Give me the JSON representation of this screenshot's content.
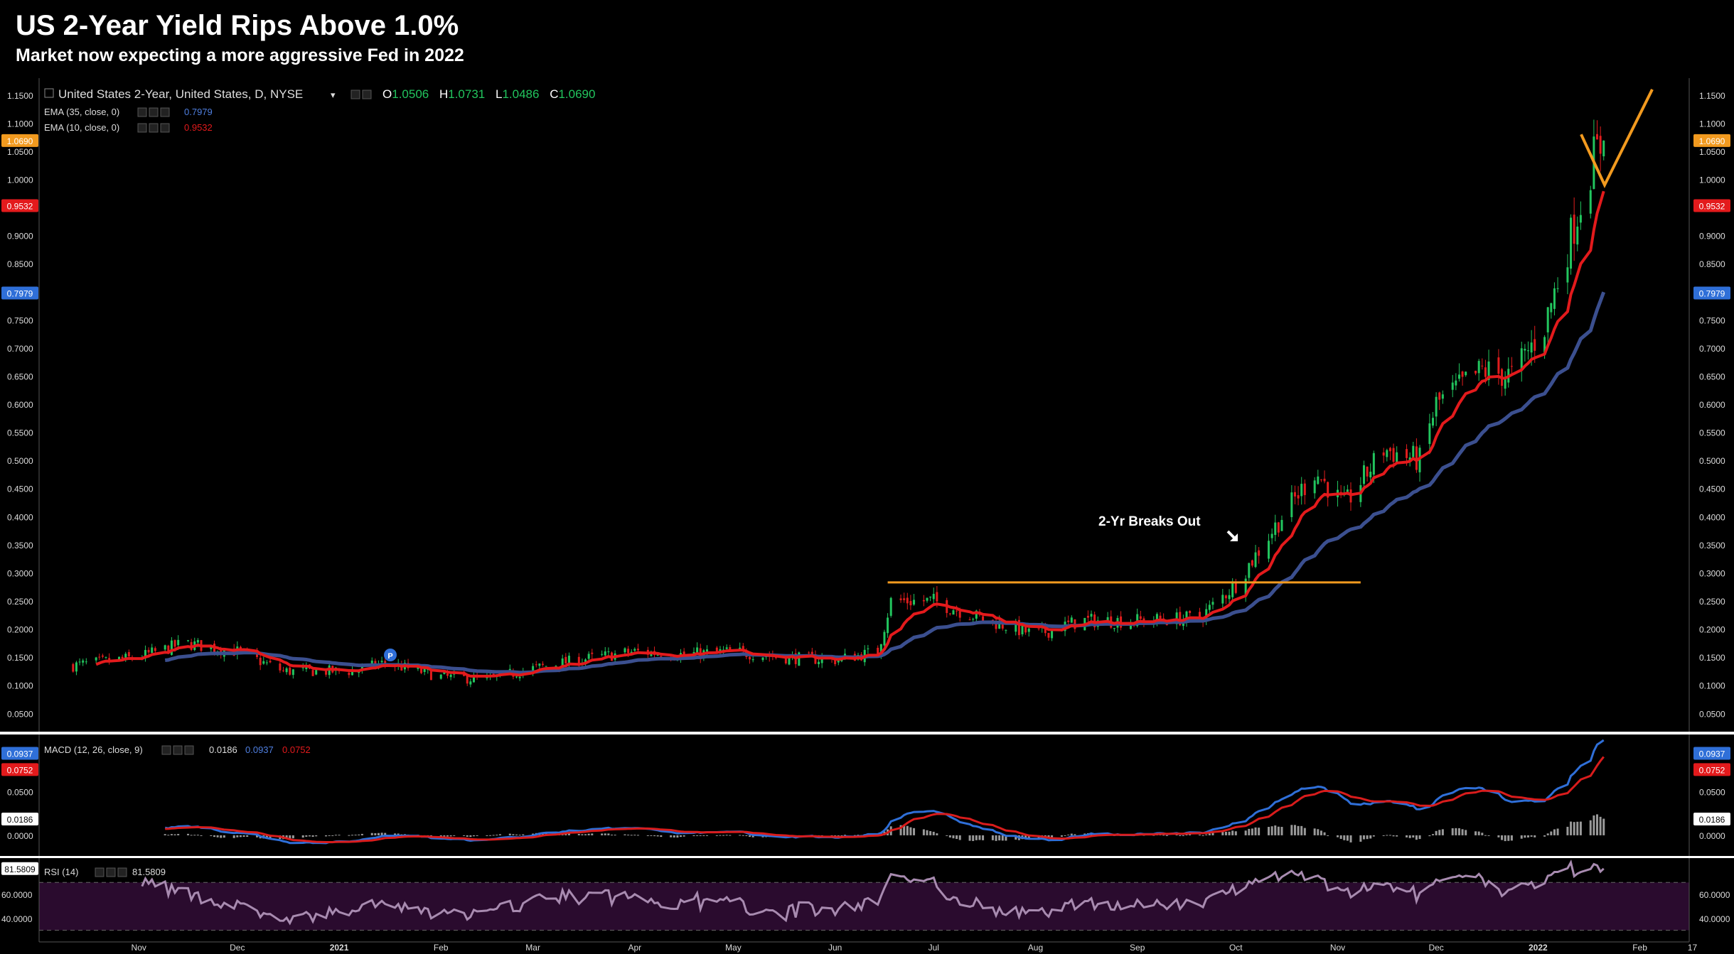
{
  "header": {
    "title": "US 2-Year Yield Rips Above 1.0%",
    "subtitle": "Market now expecting a more aggressive Fed in 2022"
  },
  "legend": {
    "symbol": "United States 2-Year, United States, D, NYSE",
    "ohlc": [
      {
        "k": "O",
        "v": "1.0506"
      },
      {
        "k": "H",
        "v": "1.0731"
      },
      {
        "k": "L",
        "v": "1.0486"
      },
      {
        "k": "C",
        "v": "1.0690"
      }
    ],
    "ema35_label": "EMA (35, close, 0)",
    "ema35_value": "0.7979",
    "ema10_label": "EMA (10, close, 0)",
    "ema10_value": "0.9532",
    "macd_label": "MACD (12, 26, close, 9)",
    "macd_values": [
      "0.0186",
      "0.0937",
      "0.0752"
    ],
    "rsi_label": "RSI (14)",
    "rsi_value": "81.5809"
  },
  "annotation": {
    "text": "2-Yr Breaks Out",
    "resistance_level": 0.283
  },
  "colors": {
    "background": "#000000",
    "up": "#22c55e",
    "down": "#e11d1d",
    "ema10": "#e31a1c",
    "ema35": "#3b4f8f",
    "macd": "#2f6fd8",
    "signal": "#d91c1c",
    "hist": "#9a9a9a",
    "rsi": "#a88bb0",
    "rsi_band": "#2a0b2e",
    "orange": "#f29a1f",
    "axis_text": "#dcdcdc"
  },
  "chart_data": {
    "type": "candlestick",
    "price_axis": {
      "ticks": [
        "1.1500",
        "1.1000",
        "1.0500",
        "1.0000",
        "0.9500",
        "0.9000",
        "0.8500",
        "0.8000",
        "0.7500",
        "0.7000",
        "0.6500",
        "0.6000",
        "0.5500",
        "0.5000",
        "0.4500",
        "0.4000",
        "0.3500",
        "0.3000",
        "0.2500",
        "0.2000",
        "0.1500",
        "0.1000",
        "0.0500"
      ],
      "range": [
        0.02,
        1.17
      ],
      "badges": [
        {
          "value": 1.069,
          "label": "1.0690",
          "color": "#f29a1f"
        },
        {
          "value": 0.9532,
          "label": "0.9532",
          "color": "#e31a1c"
        },
        {
          "value": 0.7979,
          "label": "0.7979",
          "color": "#2f6fd8"
        }
      ]
    },
    "macd_axis": {
      "ticks": [
        "0.0500",
        "0.0000"
      ],
      "range": [
        -0.022,
        0.112
      ],
      "badges": [
        {
          "value": 0.0937,
          "label": "0.0937",
          "color": "#2f6fd8"
        },
        {
          "value": 0.0752,
          "label": "0.0752",
          "color": "#e31a1c"
        },
        {
          "value": 0.0186,
          "label": "0.0186",
          "color": "#ffffff"
        }
      ]
    },
    "rsi_axis": {
      "ticks": [
        "60.0000",
        "40.0000"
      ],
      "range": [
        25,
        88
      ],
      "band": [
        30,
        70
      ],
      "badge": {
        "value": 81.5809,
        "label": "81.5809",
        "color": "#ffffff"
      }
    },
    "time_axis": [
      "Nov",
      "Dec",
      "2021",
      "Feb",
      "Mar",
      "Apr",
      "May",
      "Jun",
      "Jul",
      "Aug",
      "Sep",
      "Oct",
      "Nov",
      "Dec",
      "2022",
      "Feb",
      "17"
    ],
    "anchors": [
      {
        "date": "2020-10-12",
        "y": 0.135
      },
      {
        "date": "2020-11-01",
        "y": 0.15
      },
      {
        "date": "2020-11-15",
        "y": 0.175
      },
      {
        "date": "2020-12-01",
        "y": 0.16
      },
      {
        "date": "2020-12-15",
        "y": 0.125
      },
      {
        "date": "2021-01-05",
        "y": 0.125
      },
      {
        "date": "2021-01-15",
        "y": 0.14
      },
      {
        "date": "2021-02-01",
        "y": 0.115
      },
      {
        "date": "2021-02-15",
        "y": 0.11
      },
      {
        "date": "2021-03-01",
        "y": 0.13
      },
      {
        "date": "2021-03-15",
        "y": 0.145
      },
      {
        "date": "2021-04-01",
        "y": 0.16
      },
      {
        "date": "2021-04-15",
        "y": 0.155
      },
      {
        "date": "2021-05-01",
        "y": 0.16
      },
      {
        "date": "2021-05-15",
        "y": 0.15
      },
      {
        "date": "2021-06-01",
        "y": 0.145
      },
      {
        "date": "2021-06-14",
        "y": 0.16
      },
      {
        "date": "2021-06-18",
        "y": 0.25
      },
      {
        "date": "2021-07-01",
        "y": 0.25
      },
      {
        "date": "2021-07-15",
        "y": 0.22
      },
      {
        "date": "2021-08-01",
        "y": 0.19
      },
      {
        "date": "2021-08-15",
        "y": 0.215
      },
      {
        "date": "2021-09-01",
        "y": 0.215
      },
      {
        "date": "2021-09-20",
        "y": 0.22
      },
      {
        "date": "2021-10-01",
        "y": 0.28
      },
      {
        "date": "2021-10-15",
        "y": 0.4
      },
      {
        "date": "2021-10-25",
        "y": 0.48
      },
      {
        "date": "2021-11-03",
        "y": 0.42
      },
      {
        "date": "2021-11-15",
        "y": 0.52
      },
      {
        "date": "2021-11-26",
        "y": 0.5
      },
      {
        "date": "2021-12-01",
        "y": 0.6
      },
      {
        "date": "2021-12-15",
        "y": 0.66
      },
      {
        "date": "2021-12-24",
        "y": 0.65
      },
      {
        "date": "2022-01-03",
        "y": 0.74
      },
      {
        "date": "2022-01-10",
        "y": 0.88
      },
      {
        "date": "2022-01-18",
        "y": 1.04
      },
      {
        "date": "2022-01-21",
        "y": 1.069
      }
    ]
  }
}
